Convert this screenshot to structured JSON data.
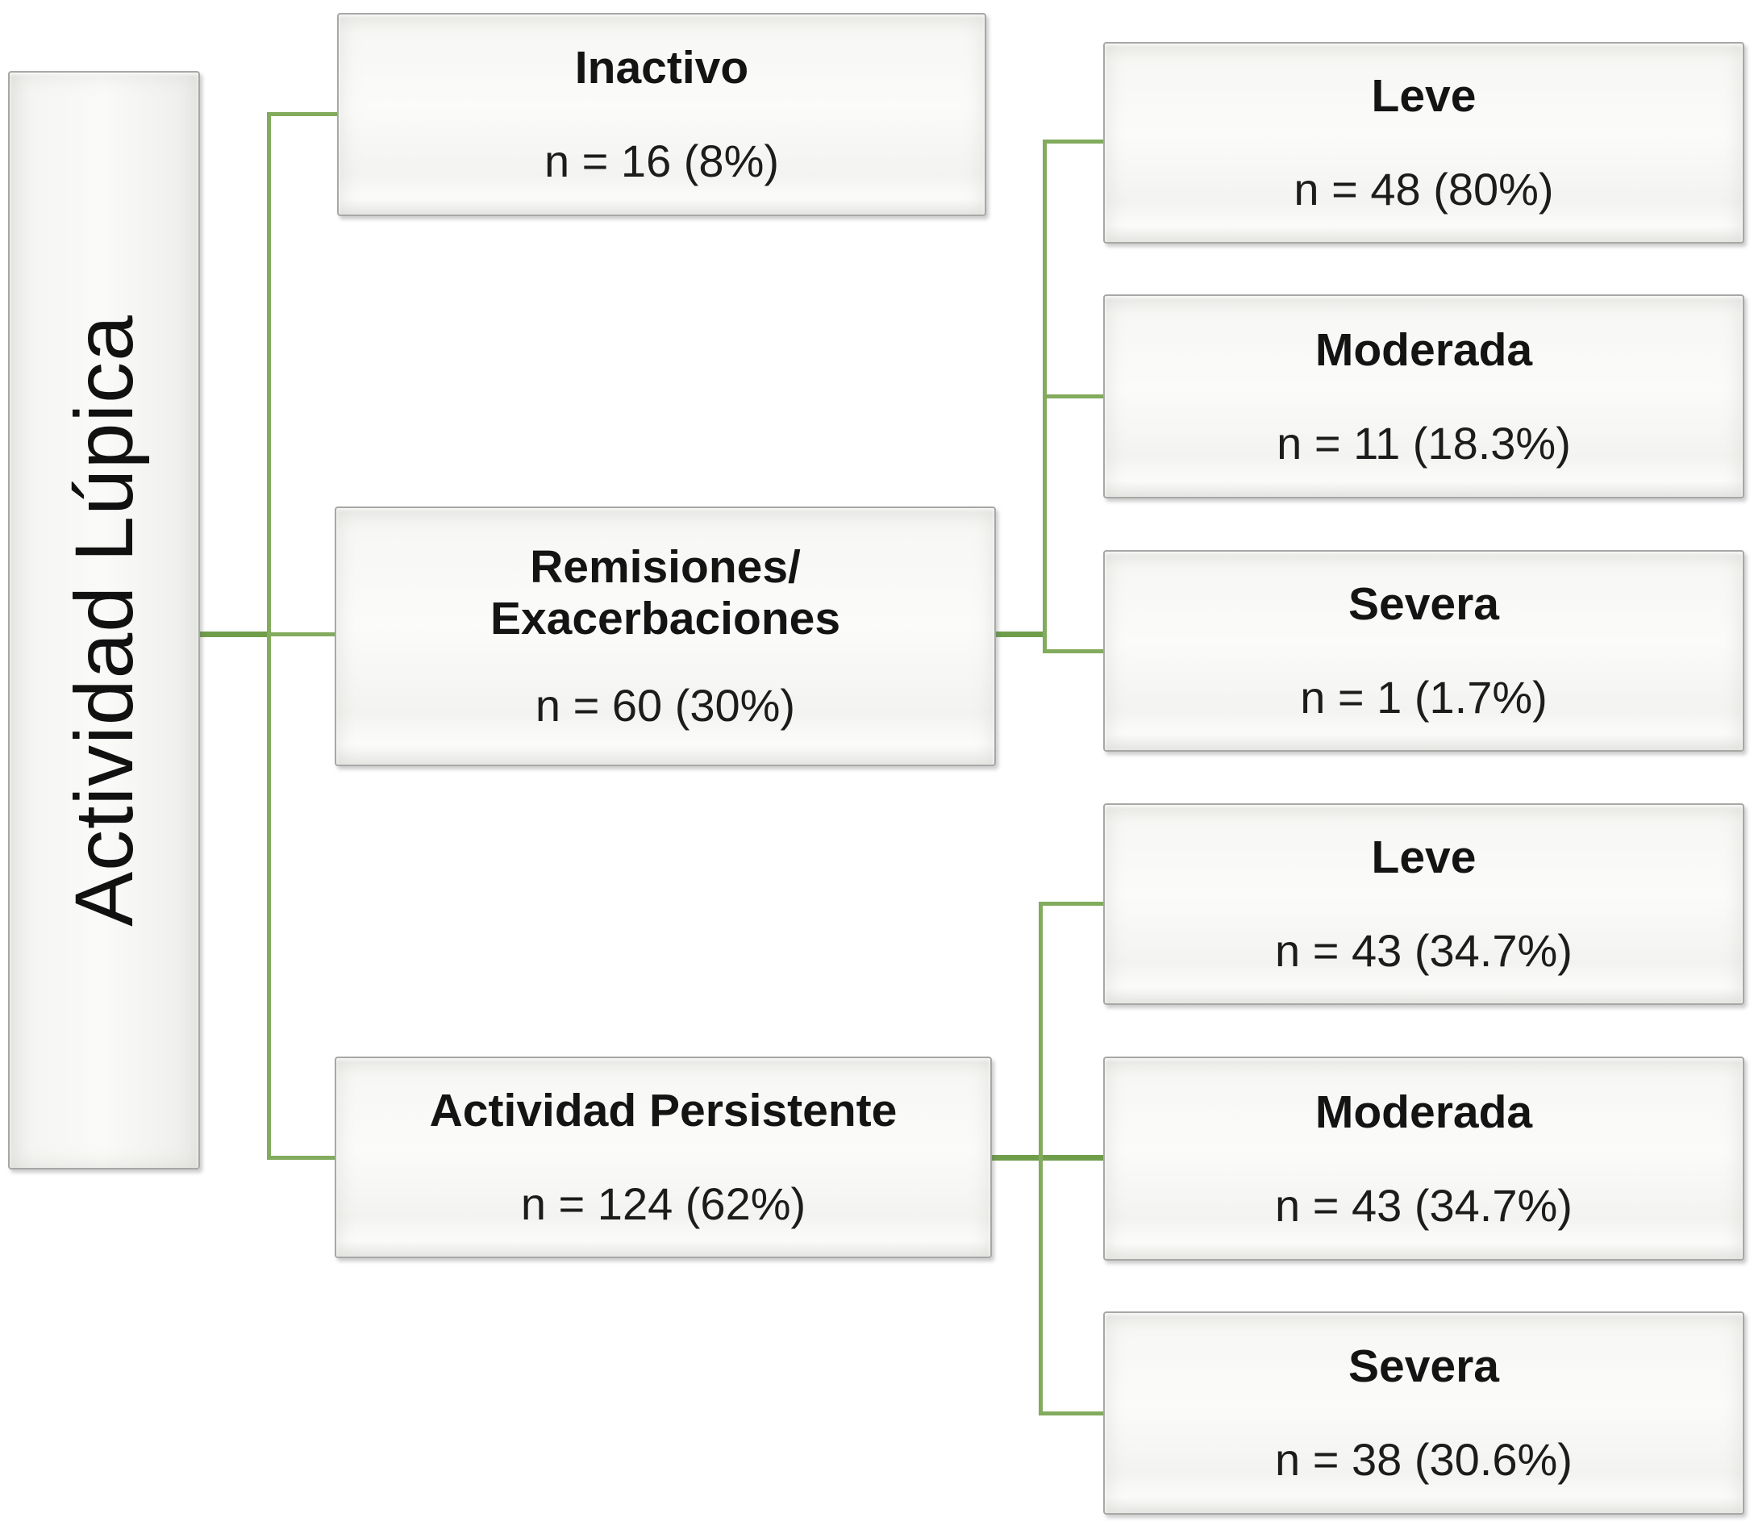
{
  "title": "Actividad Lúpica",
  "colors": {
    "connector_green": "#82ab5d",
    "connector_green_dark": "#6f9e4b",
    "box_border_gray": "#a7a7a5",
    "box_fill": "#f7f7f5",
    "text_black": "#141414"
  },
  "nodes": {
    "root": {
      "label": "Actividad Lúpica"
    },
    "inactivo": {
      "label": "Inactivo",
      "value": "n = 16 (8%)"
    },
    "remisiones": {
      "label": "Remisiones/",
      "label2": "Exacerbaciones",
      "value": "n = 60 (30%)"
    },
    "persistente": {
      "label": "Actividad Persistente",
      "value": "n = 124 (62%)"
    },
    "rem_leve": {
      "label": "Leve",
      "value": "n = 48 (80%)"
    },
    "rem_moderada": {
      "label": "Moderada",
      "value": "n = 11 (18.3%)"
    },
    "rem_severa": {
      "label": "Severa",
      "value": "n = 1 (1.7%)"
    },
    "per_leve": {
      "label": "Leve",
      "value": "n = 43 (34.7%)"
    },
    "per_moderada": {
      "label": "Moderada",
      "value": "n = 43 (34.7%)"
    },
    "per_severa": {
      "label": "Severa",
      "value": "n = 38 (30.6%)"
    }
  },
  "hierarchy": [
    {
      "parent": "Actividad Lúpica",
      "child": "Inactivo"
    },
    {
      "parent": "Actividad Lúpica",
      "child": "Remisiones/Exacerbaciones"
    },
    {
      "parent": "Actividad Lúpica",
      "child": "Actividad Persistente"
    },
    {
      "parent": "Remisiones/Exacerbaciones",
      "child": "Leve"
    },
    {
      "parent": "Remisiones/Exacerbaciones",
      "child": "Moderada"
    },
    {
      "parent": "Remisiones/Exacerbaciones",
      "child": "Severa"
    },
    {
      "parent": "Actividad Persistente",
      "child": "Leve"
    },
    {
      "parent": "Actividad Persistente",
      "child": "Moderada"
    },
    {
      "parent": "Actividad Persistente",
      "child": "Severa"
    }
  ]
}
